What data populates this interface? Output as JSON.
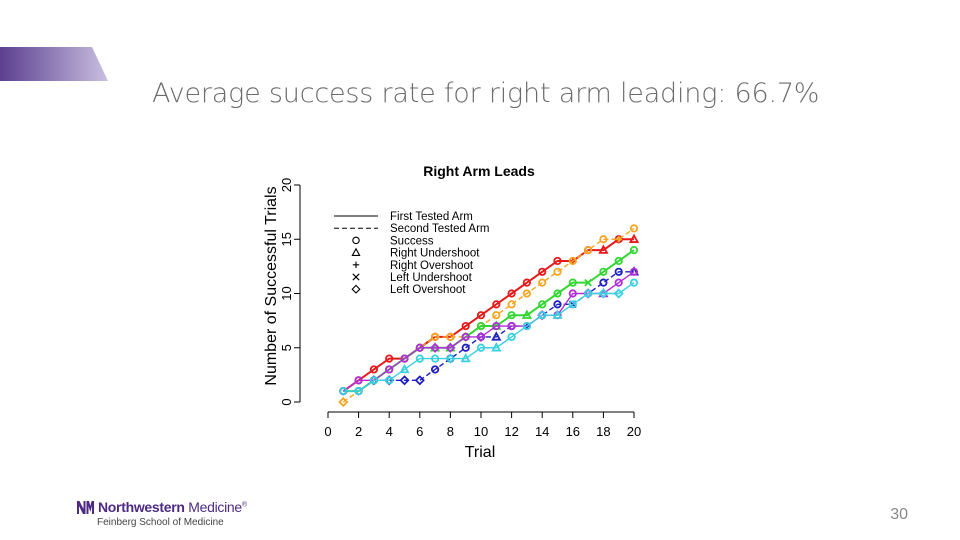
{
  "slide": {
    "title": "Average success rate for right arm leading: 66.7%",
    "page_number": "30"
  },
  "logo": {
    "brand_bold": "Northwestern",
    "brand_light": " Medicine",
    "registered": "®",
    "subtitle": "Feinberg School of Medicine",
    "color": "#4e2a84"
  },
  "accent_bar": {
    "color_start": "#5b3f8f",
    "color_end": "#c9bfe0"
  },
  "chart_data": {
    "type": "line",
    "title": "Right Arm Leads",
    "xlabel": "Trial",
    "ylabel": "Number of Successful Trials",
    "xlim": [
      0,
      20
    ],
    "ylim": [
      0,
      20
    ],
    "xticks": [
      0,
      2,
      4,
      6,
      8,
      10,
      12,
      14,
      16,
      18,
      20
    ],
    "yticks": [
      0,
      5,
      10,
      15,
      20
    ],
    "legend_position": "top-left",
    "legend": [
      {
        "label": "First Tested Arm",
        "glyph": "line-solid"
      },
      {
        "label": "Second Tested Arm",
        "glyph": "line-dashed"
      },
      {
        "label": "Success",
        "glyph": "circle"
      },
      {
        "label": "Right Undershoot",
        "glyph": "triangle"
      },
      {
        "label": "Right Overshoot",
        "glyph": "plus"
      },
      {
        "label": "Left Undershoot",
        "glyph": "cross"
      },
      {
        "label": "Left Overshoot",
        "glyph": "diamond"
      }
    ],
    "x": [
      1,
      2,
      3,
      4,
      5,
      6,
      7,
      8,
      9,
      10,
      11,
      12,
      13,
      14,
      15,
      16,
      17,
      18,
      19,
      20
    ],
    "series": [
      {
        "color": "#e51a1a",
        "dash": "solid",
        "width": 2,
        "values": [
          1,
          2,
          3,
          4,
          4,
          5,
          6,
          6,
          7,
          8,
          9,
          10,
          11,
          12,
          13,
          13,
          14,
          14,
          15,
          15
        ],
        "markers": [
          "circle",
          "circle",
          "circle",
          "circle",
          "circle",
          "circle",
          "circle",
          "circle",
          "circle",
          "circle",
          "circle",
          "circle",
          "circle",
          "circle",
          "circle",
          "plus",
          "circle",
          "triangle",
          "circle",
          "triangle"
        ]
      },
      {
        "color": "#f5a623",
        "dash": "dashed",
        "width": 1.4,
        "values": [
          0,
          1,
          2,
          3,
          4,
          5,
          6,
          6,
          6,
          7,
          8,
          9,
          10,
          11,
          12,
          13,
          14,
          15,
          15,
          16
        ],
        "markers": [
          "diamond",
          "circle",
          "circle",
          "circle",
          "circle",
          "circle",
          "circle",
          "circle",
          "diamond",
          "circle",
          "circle",
          "circle",
          "circle",
          "circle",
          "circle",
          "circle",
          "circle",
          "circle",
          "plus",
          "circle"
        ]
      },
      {
        "color": "#33d633",
        "dash": "solid",
        "width": 2,
        "values": [
          1,
          1,
          2,
          3,
          4,
          5,
          5,
          5,
          6,
          7,
          7,
          8,
          8,
          9,
          10,
          11,
          11,
          12,
          13,
          14
        ],
        "markers": [
          "circle",
          "circle",
          "circle",
          "circle",
          "circle",
          "circle",
          "triangle",
          "triangle",
          "circle",
          "circle",
          "triangle",
          "circle",
          "triangle",
          "circle",
          "circle",
          "circle",
          "cross",
          "circle",
          "circle",
          "circle"
        ]
      },
      {
        "color": "#1f1fbf",
        "dash": "dashed",
        "width": 1.4,
        "values": [
          1,
          1,
          2,
          2,
          2,
          2,
          3,
          4,
          5,
          6,
          6,
          7,
          7,
          8,
          9,
          9,
          10,
          11,
          12,
          12
        ],
        "markers": [
          "circle",
          "circle",
          "diamond",
          "diamond",
          "diamond",
          "diamond",
          "circle",
          "circle",
          "circle",
          "circle",
          "triangle",
          "circle",
          "plus",
          "circle",
          "circle",
          "cross",
          "circle",
          "circle",
          "circle",
          "triangle"
        ]
      },
      {
        "color": "#b030d8",
        "dash": "solid",
        "width": 1.4,
        "values": [
          1,
          2,
          2,
          3,
          4,
          5,
          5,
          5,
          6,
          6,
          7,
          7,
          7,
          8,
          8,
          10,
          10,
          10,
          11,
          12
        ],
        "markers": [
          "circle",
          "circle",
          "circle",
          "circle",
          "circle",
          "circle",
          "diamond",
          "diamond",
          "circle",
          "diamond",
          "circle",
          "circle",
          "circle",
          "diamond",
          "circle",
          "circle",
          "diamond",
          "triangle",
          "circle",
          "circle"
        ]
      },
      {
        "color": "#3ad0e0",
        "dash": "solid",
        "width": 1.4,
        "values": [
          1,
          1,
          2,
          2,
          3,
          4,
          4,
          4,
          4,
          5,
          5,
          6,
          7,
          8,
          8,
          9,
          10,
          10,
          10,
          11
        ],
        "markers": [
          "circle",
          "circle",
          "circle",
          "circle",
          "triangle",
          "circle",
          "circle",
          "diamond",
          "triangle",
          "circle",
          "triangle",
          "circle",
          "circle",
          "circle",
          "triangle",
          "circle",
          "circle",
          "diamond",
          "diamond",
          "circle"
        ]
      }
    ]
  }
}
